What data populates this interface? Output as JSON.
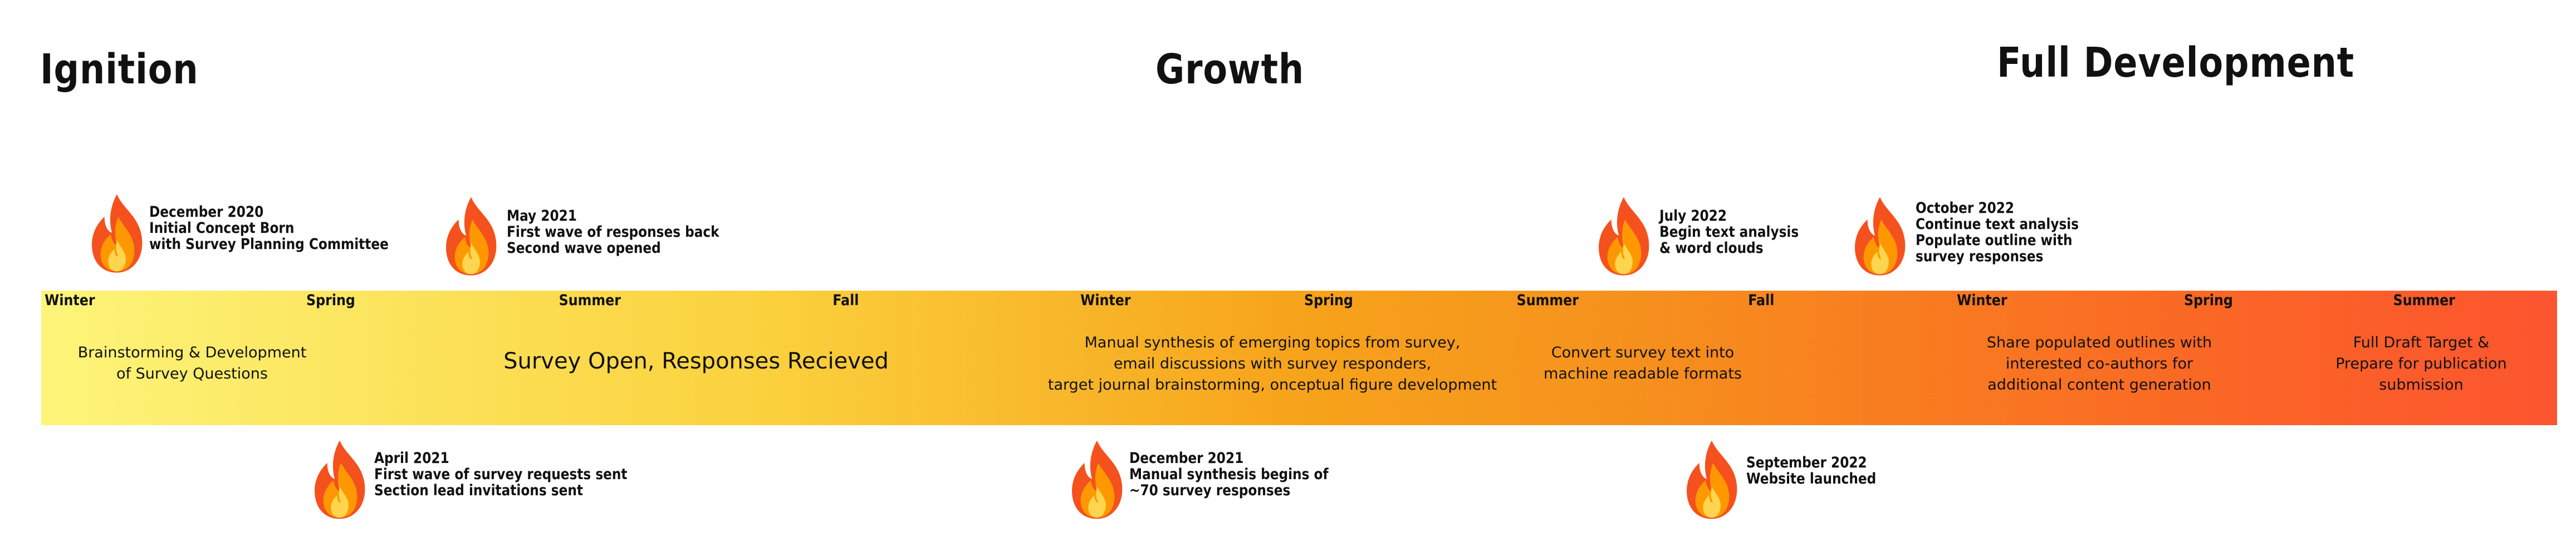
{
  "phases": [
    {
      "label": "Ignition"
    },
    {
      "label": "Growth"
    },
    {
      "label": "Full Development"
    }
  ],
  "seasons": [
    "Winter",
    "Spring",
    "Summer",
    "Fall",
    "Winter",
    "Spring",
    "Summer",
    "Fall",
    "Winter",
    "Spring",
    "Summer"
  ],
  "band_texts": [
    {
      "lines": [
        "Brainstorming & Development",
        "of Survey Questions"
      ]
    },
    {
      "lines": [
        "Survey Open, Responses Recieved"
      ]
    },
    {
      "lines": [
        "Manual synthesis of emerging topics from survey,",
        "email discussions with survey responders,",
        "target journal brainstorming, onceptual figure development"
      ]
    },
    {
      "lines": [
        "Convert survey text into",
        "machine readable formats"
      ]
    },
    {
      "lines": [
        "Share populated outlines with",
        "interested co-authors for",
        "additional content generation"
      ]
    },
    {
      "lines": [
        "Full Draft Target &",
        "Prepare for publication",
        "submission"
      ]
    }
  ],
  "events": [
    {
      "lines": [
        "December 2020",
        "Initial Concept Born",
        "with Survey Planning Committee"
      ],
      "icon": "fire-icon"
    },
    {
      "lines": [
        "May 2021",
        "First wave of responses back",
        "Second wave opened"
      ],
      "icon": "fire-icon"
    },
    {
      "lines": [
        "July 2022",
        "Begin text analysis",
        "& word clouds"
      ],
      "icon": "fire-icon"
    },
    {
      "lines": [
        "October 2022",
        "Continue text analysis",
        "Populate outline with",
        "survey responses"
      ],
      "icon": "fire-icon"
    },
    {
      "lines": [
        "April 2021",
        "First wave of survey requests sent",
        "Section lead invitations sent"
      ],
      "icon": "fire-icon"
    },
    {
      "lines": [
        "December 2021",
        "Manual synthesis begins of",
        "~70 survey responses"
      ],
      "icon": "fire-icon"
    },
    {
      "lines": [
        "September 2022",
        "Website launched"
      ],
      "icon": "fire-icon"
    }
  ],
  "colors": {
    "band_start": "#fdf57a",
    "band_mid": "#f7a31b",
    "band_end": "#fc5530",
    "flame_outer": "#f4511e",
    "flame_mid": "#ff9800",
    "flame_inner": "#ffd54f"
  }
}
